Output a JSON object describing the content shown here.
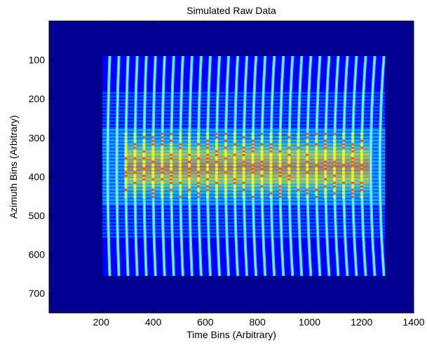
{
  "chart_data": {
    "type": "heatmap",
    "title": "Simulated Raw Data",
    "xlabel": "Time Bins (Arbitrary)",
    "ylabel": "Azimuth Bins (Arbitrary)",
    "xlim": [
      0,
      1400
    ],
    "ylim": [
      750,
      0
    ],
    "y_axis_reversed": true,
    "xticks": [
      200,
      400,
      600,
      800,
      1000,
      1200,
      1400
    ],
    "yticks": [
      100,
      200,
      300,
      400,
      500,
      600,
      700
    ],
    "colormap": "jet",
    "colors": {
      "background": "#00008f",
      "low": "#0000ff",
      "mid": "#00ffff",
      "high": "#ffff00",
      "peak": "#ff4000"
    },
    "signal_region": {
      "x": [
        205,
        1290
      ],
      "y": [
        90,
        655
      ]
    },
    "vertical_stripes": {
      "x_start": 225,
      "x_end": 1270,
      "count": 31,
      "bend_direction": "upward with increasing time",
      "note": "smile-shaped range-migration curves spanning full azimuth extent"
    },
    "horizontal_bands": [
      {
        "y": [
          185,
          560
        ],
        "spacing": 9,
        "intensity": "medium"
      },
      {
        "y": [
          280,
          470
        ],
        "spacing": 9,
        "intensity": "high"
      }
    ],
    "hot_region": {
      "x": [
        290,
        1230
      ],
      "y": [
        290,
        460
      ],
      "max_color": "#ff4000"
    },
    "grid": false,
    "legend": "none"
  }
}
